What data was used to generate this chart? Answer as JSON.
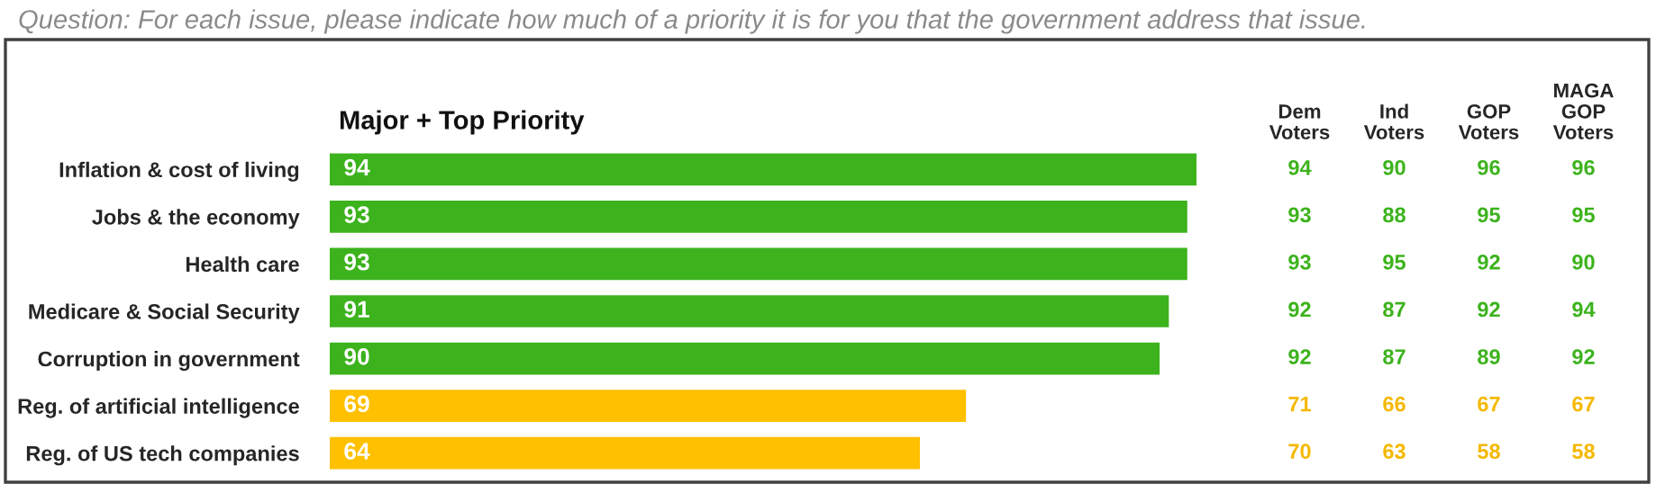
{
  "chart_data": [
    {
      "type": "bar",
      "orientation": "horizontal",
      "title": "Question: For each issue, please indicate how much of a priority it is for you that the government address that issue.",
      "subtitle": "Major + Top Priority",
      "categories": [
        "Inflation & cost of living",
        "Jobs & the economy",
        "Health care",
        "Medicare & Social Security",
        "Corruption in government",
        "Reg. of artificial intelligence",
        "Reg. of US tech companies"
      ],
      "values": [
        94,
        93,
        93,
        91,
        90,
        69,
        64
      ],
      "colors": [
        "#3cb31c",
        "#3cb31c",
        "#3cb31c",
        "#3cb31c",
        "#3cb31c",
        "#ffc000",
        "#ffc000"
      ],
      "data_labels": true,
      "tick_labels": "y"
    },
    {
      "type": "other",
      "categories": [
        "Dem Voters",
        "Ind Voters",
        "GOP Voters",
        "MAGA GOP Voters"
      ],
      "annotations": [
        "94",
        "90",
        "96",
        "96",
        "93",
        "88",
        "95",
        "95",
        "93",
        "95",
        "92",
        "90",
        "92",
        "87",
        "92",
        "94",
        "92",
        "87",
        "89",
        "92",
        "71",
        "66",
        "67",
        "67",
        "70",
        "63",
        "58",
        "58"
      ],
      "colors": [
        "#3cb31c",
        "#3cb31c",
        "#3cb31c",
        "#3cb31c",
        "#3cb31c",
        "#f5b800",
        "#f5b800"
      ]
    }
  ]
}
